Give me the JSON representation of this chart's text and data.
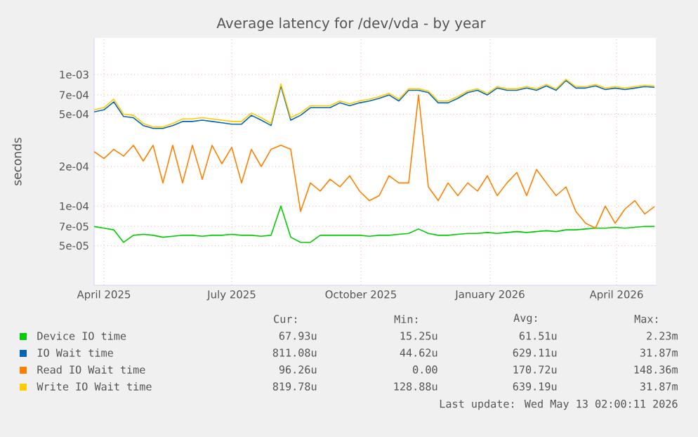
{
  "chart_data": {
    "type": "line",
    "title": "Average latency for /dev/vda - by year",
    "ylabel": "seconds",
    "log": "y",
    "grid": true,
    "legend": "bottom",
    "x": [
      "2025-04-08",
      "2025-04-15",
      "2025-04-22",
      "2025-04-29",
      "2025-05-06",
      "2025-05-13",
      "2025-05-20",
      "2025-05-27",
      "2025-06-03",
      "2025-06-10",
      "2025-06-17",
      "2025-06-24",
      "2025-07-01",
      "2025-07-08",
      "2025-07-15",
      "2025-07-22",
      "2025-07-29",
      "2025-08-05",
      "2025-08-12",
      "2025-08-19",
      "2025-08-26",
      "2025-09-02",
      "2025-09-09",
      "2025-09-16",
      "2025-09-23",
      "2025-09-30",
      "2025-10-07",
      "2025-10-14",
      "2025-10-21",
      "2025-10-28",
      "2025-11-04",
      "2025-11-11",
      "2025-11-18",
      "2025-11-25",
      "2025-12-02",
      "2025-12-09",
      "2025-12-16",
      "2025-12-23",
      "2025-12-30",
      "2026-01-06",
      "2026-01-13",
      "2026-01-20",
      "2026-01-27",
      "2026-02-03",
      "2026-02-10",
      "2026-02-17",
      "2026-02-24",
      "2026-03-03",
      "2026-03-10",
      "2026-03-17",
      "2026-03-24",
      "2026-03-31",
      "2026-04-07",
      "2026-04-14",
      "2026-04-21",
      "2026-04-28",
      "2026-05-05",
      "2026-05-12"
    ],
    "xlim": [
      "2025-04-08",
      "2026-05-13"
    ],
    "xticks": [
      {
        "value": "2025-04-15",
        "label": "April 2025"
      },
      {
        "value": "2025-07-15",
        "label": "July 2025"
      },
      {
        "value": "2025-10-15",
        "label": "October 2025"
      },
      {
        "value": "2026-01-15",
        "label": "January 2026"
      },
      {
        "value": "2026-04-15",
        "label": "April 2026"
      }
    ],
    "ylim": [
      2.5e-05,
      0.0019
    ],
    "yticks": [
      {
        "value": 5e-05,
        "label": "5e-05"
      },
      {
        "value": 7e-05,
        "label": "7e-05"
      },
      {
        "value": 0.0001,
        "label": "1e-04"
      },
      {
        "value": 0.0002,
        "label": "2e-04"
      },
      {
        "value": 0.0005,
        "label": "5e-04"
      },
      {
        "value": 0.0007,
        "label": "7e-04"
      },
      {
        "value": 0.001,
        "label": "1e-03"
      }
    ],
    "series": [
      {
        "name": "Device IO time",
        "color": "#00cc00",
        "values": [
          7e-05,
          6.8e-05,
          6.6e-05,
          5.3e-05,
          6e-05,
          6.1e-05,
          6e-05,
          5.8e-05,
          5.9e-05,
          6e-05,
          6e-05,
          5.9e-05,
          6e-05,
          6e-05,
          6.1e-05,
          6e-05,
          6e-05,
          5.9e-05,
          6e-05,
          0.0001,
          5.8e-05,
          5.3e-05,
          5.3e-05,
          6e-05,
          6e-05,
          6e-05,
          6e-05,
          6e-05,
          5.9e-05,
          6e-05,
          6e-05,
          6.1e-05,
          6.2e-05,
          6.7e-05,
          6.2e-05,
          6e-05,
          6e-05,
          6.1e-05,
          6.2e-05,
          6.2e-05,
          6.3e-05,
          6.2e-05,
          6.3e-05,
          6.4e-05,
          6.3e-05,
          6.4e-05,
          6.5e-05,
          6.4e-05,
          6.6e-05,
          6.6e-05,
          6.7e-05,
          6.8e-05,
          6.8e-05,
          6.9e-05,
          6.8e-05,
          6.9e-05,
          7e-05,
          7e-05
        ]
      },
      {
        "name": "IO Wait time",
        "color": "#0066b3",
        "values": [
          0.00052,
          0.00054,
          0.00062,
          0.00048,
          0.00047,
          0.00041,
          0.00039,
          0.00039,
          0.00041,
          0.00044,
          0.00044,
          0.00045,
          0.00044,
          0.00043,
          0.00042,
          0.00042,
          0.00049,
          0.00045,
          0.00041,
          0.00082,
          0.00045,
          0.00049,
          0.00056,
          0.00056,
          0.00056,
          0.00061,
          0.00058,
          0.00061,
          0.00063,
          0.00066,
          0.0007,
          0.00063,
          0.00076,
          0.00076,
          0.00073,
          0.00061,
          0.00061,
          0.00066,
          0.00073,
          0.00076,
          0.0007,
          0.00079,
          0.00076,
          0.00076,
          0.00079,
          0.00076,
          0.00082,
          0.00076,
          0.0009,
          0.00079,
          0.00079,
          0.00082,
          0.00077,
          0.00079,
          0.00077,
          0.00079,
          0.00081,
          0.0008
        ]
      },
      {
        "name": "Read IO Wait time",
        "color": "#ff8000",
        "values": [
          0.00026,
          0.00023,
          0.00027,
          0.00024,
          0.00029,
          0.00022,
          0.00029,
          0.00015,
          0.00029,
          0.00015,
          0.00029,
          0.00016,
          0.00029,
          0.00021,
          0.00028,
          0.00015,
          0.00027,
          0.0002,
          0.00027,
          0.00029,
          0.00027,
          9.1e-05,
          0.00015,
          0.00013,
          0.00016,
          0.00014,
          0.00017,
          0.00013,
          0.00011,
          0.00012,
          0.00017,
          0.00015,
          0.00015,
          0.0007,
          0.00014,
          0.00011,
          0.00015,
          0.00012,
          0.00015,
          0.00013,
          0.00017,
          0.00012,
          0.00015,
          0.00018,
          0.00012,
          0.00019,
          0.00015,
          0.00012,
          0.00014,
          9.1e-05,
          7.4e-05,
          6.8e-05,
          0.0001,
          7.4e-05,
          9.5e-05,
          0.00011,
          8.7e-05,
          9.9e-05
        ]
      },
      {
        "name": "Write IO Wait time",
        "color": "#ffcc00",
        "values": [
          0.00054,
          0.00056,
          0.00065,
          0.0005,
          0.00049,
          0.000425,
          0.0004,
          0.0004,
          0.000425,
          0.00046,
          0.00046,
          0.00047,
          0.00046,
          0.00045,
          0.00044,
          0.00044,
          0.00051,
          0.00047,
          0.000425,
          0.00085,
          0.00047,
          0.00051,
          0.00058,
          0.00058,
          0.00058,
          0.00063,
          0.0006,
          0.00063,
          0.00065,
          0.00068,
          0.00072,
          0.00065,
          0.00078,
          0.00078,
          0.00075,
          0.00063,
          0.00063,
          0.00068,
          0.00075,
          0.00078,
          0.00072,
          0.00081,
          0.00078,
          0.00078,
          0.00081,
          0.00078,
          0.00084,
          0.00078,
          0.00092,
          0.00081,
          0.00081,
          0.00084,
          0.00079,
          0.00081,
          0.00079,
          0.00081,
          0.00083,
          0.00082
        ]
      }
    ],
    "annotations": [
      "Cur:",
      "Min:",
      "Avg:",
      "Max:",
      "67.93u",
      "15.25u",
      "61.51u",
      "2.23m",
      "811.08u",
      "44.62u",
      "629.11u",
      "31.87m",
      "96.26u",
      "0.00",
      "170.72u",
      "148.36m",
      "819.78u",
      "128.88u",
      "639.19u",
      "31.87m",
      "Last update: Wed May 13 02:00:11 2026"
    ]
  }
}
